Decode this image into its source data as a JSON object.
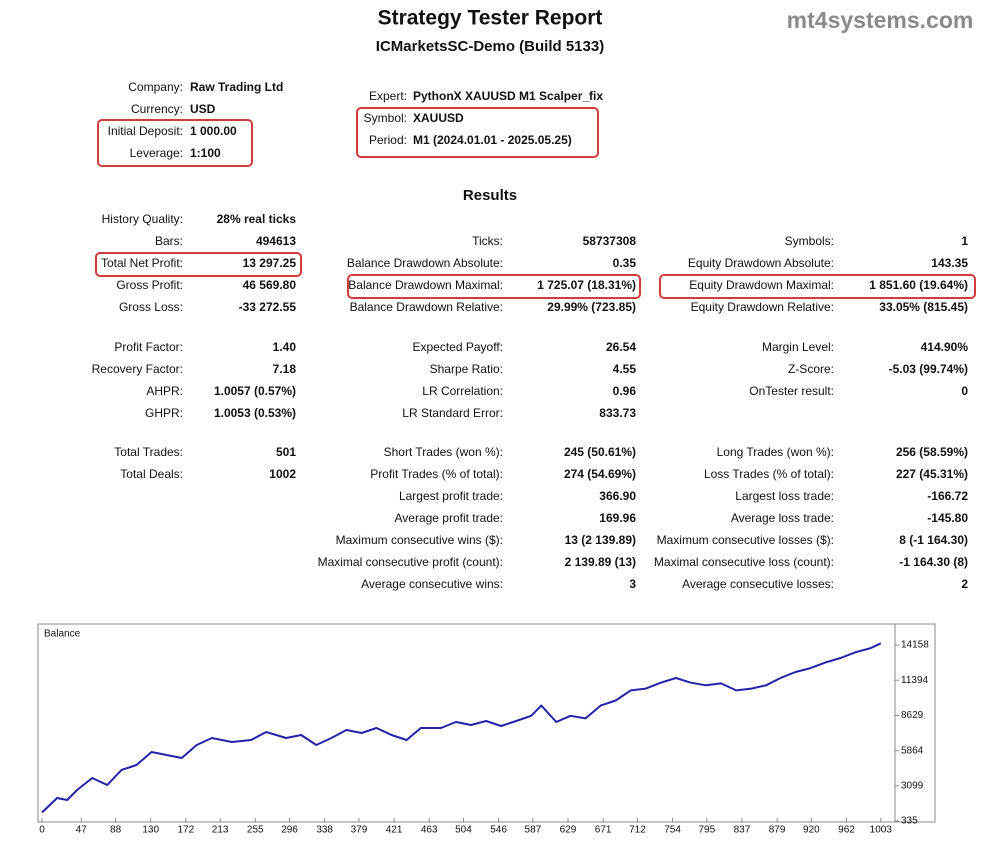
{
  "header": {
    "title": "Strategy Tester Report",
    "subtitle": "ICMarketsSC-Demo (Build 5133)",
    "watermark": "mt4systems.com"
  },
  "settings": {
    "left": [
      {
        "label": "Company:",
        "value": "Raw Trading Ltd"
      },
      {
        "label": "Currency:",
        "value": "USD"
      },
      {
        "label": "Initial Deposit:",
        "value": "1 000.00"
      },
      {
        "label": "Leverage:",
        "value": "1:100"
      }
    ],
    "right": [
      {
        "label": "Expert:",
        "value": "PythonX XAUUSD M1 Scalper_fix"
      },
      {
        "label": "Symbol:",
        "value": "XAUUSD"
      },
      {
        "label": "Period:",
        "value": "M1 (2024.01.01 - 2025.05.25)"
      }
    ]
  },
  "results": {
    "title": "Results",
    "blocks": [
      {
        "rows": [
          [
            {
              "label": "History Quality:",
              "value": "28% real ticks"
            },
            null,
            null
          ],
          [
            {
              "label": "Bars:",
              "value": "494613"
            },
            {
              "label": "Ticks:",
              "value": "58737308"
            },
            {
              "label": "Symbols:",
              "value": "1"
            }
          ],
          [
            {
              "label": "Total Net Profit:",
              "value": "13 297.25"
            },
            {
              "label": "Balance Drawdown Absolute:",
              "value": "0.35"
            },
            {
              "label": "Equity Drawdown Absolute:",
              "value": "143.35"
            }
          ],
          [
            {
              "label": "Gross Profit:",
              "value": "46 569.80"
            },
            {
              "label": "Balance Drawdown Maximal:",
              "value": "1 725.07 (18.31%)"
            },
            {
              "label": "Equity Drawdown Maximal:",
              "value": "1 851.60 (19.64%)"
            }
          ],
          [
            {
              "label": "Gross Loss:",
              "value": "-33 272.55"
            },
            {
              "label": "Balance Drawdown Relative:",
              "value": "29.99% (723.85)"
            },
            {
              "label": "Equity Drawdown Relative:",
              "value": "33.05% (815.45)"
            }
          ]
        ]
      },
      {
        "rows": [
          [
            {
              "label": "Profit Factor:",
              "value": "1.40"
            },
            {
              "label": "Expected Payoff:",
              "value": "26.54"
            },
            {
              "label": "Margin Level:",
              "value": "414.90%"
            }
          ],
          [
            {
              "label": "Recovery Factor:",
              "value": "7.18"
            },
            {
              "label": "Sharpe Ratio:",
              "value": "4.55"
            },
            {
              "label": "Z-Score:",
              "value": "-5.03 (99.74%)"
            }
          ],
          [
            {
              "label": "AHPR:",
              "value": "1.0057 (0.57%)"
            },
            {
              "label": "LR Correlation:",
              "value": "0.96"
            },
            {
              "label": "OnTester result:",
              "value": "0"
            }
          ],
          [
            {
              "label": "GHPR:",
              "value": "1.0053 (0.53%)"
            },
            {
              "label": "LR Standard Error:",
              "value": "833.73"
            },
            null
          ]
        ]
      },
      {
        "rows": [
          [
            {
              "label": "Total Trades:",
              "value": "501"
            },
            {
              "label": "Short Trades (won %):",
              "value": "245 (50.61%)"
            },
            {
              "label": "Long Trades (won %):",
              "value": "256 (58.59%)"
            }
          ],
          [
            {
              "label": "Total Deals:",
              "value": "1002"
            },
            {
              "label": "Profit Trades (% of total):",
              "value": "274 (54.69%)"
            },
            {
              "label": "Loss Trades (% of total):",
              "value": "227 (45.31%)"
            }
          ],
          [
            null,
            {
              "label": "Largest profit trade:",
              "value": "366.90"
            },
            {
              "label": "Largest loss trade:",
              "value": "-166.72"
            }
          ],
          [
            null,
            {
              "label": "Average profit trade:",
              "value": "169.96"
            },
            {
              "label": "Average loss trade:",
              "value": "-145.80"
            }
          ],
          [
            null,
            {
              "label": "Maximum consecutive wins ($):",
              "value": "13 (2 139.89)"
            },
            {
              "label": "Maximum consecutive losses ($):",
              "value": "8 (-1 164.30)"
            }
          ],
          [
            null,
            {
              "label": "Maximal consecutive profit (count):",
              "value": "2 139.89 (13)"
            },
            {
              "label": "Maximal consecutive loss (count):",
              "value": "-1 164.30 (8)"
            }
          ],
          [
            null,
            {
              "label": "Average consecutive wins:",
              "value": "3"
            },
            {
              "label": "Average consecutive losses:",
              "value": "2"
            }
          ]
        ]
      }
    ]
  },
  "chart_data": {
    "type": "line",
    "title": "Balance",
    "x": [
      0,
      18,
      30,
      42,
      60,
      78,
      95,
      113,
      131,
      149,
      167,
      185,
      203,
      227,
      250,
      268,
      292,
      310,
      328,
      346,
      364,
      382,
      400,
      418,
      436,
      453,
      477,
      495,
      513,
      531,
      549,
      567,
      585,
      597,
      615,
      632,
      650,
      668,
      686,
      704,
      722,
      740,
      758,
      776,
      794,
      812,
      830,
      848,
      866,
      883,
      901,
      919,
      937,
      955,
      973,
      991,
      1003
    ],
    "series": [
      {
        "name": "Balance",
        "color": "#2323a8",
        "values": [
          1000,
          2142,
          1985,
          2770,
          3713,
          3163,
          4341,
          4734,
          5756,
          5520,
          5284,
          6305,
          6855,
          6540,
          6700,
          7327,
          6855,
          7090,
          6305,
          6855,
          7484,
          7248,
          7641,
          7090,
          6700,
          7641,
          7641,
          8112,
          7877,
          8190,
          7800,
          8190,
          8600,
          9400,
          8112,
          8600,
          8400,
          9400,
          9800,
          10600,
          10740,
          11200,
          11570,
          11200,
          11000,
          11150,
          10600,
          10740,
          11000,
          11570,
          12040,
          12350,
          12800,
          13140,
          13600,
          13920,
          14297
        ]
      }
    ],
    "xlim": [
      0,
      1020
    ],
    "ylim": [
      335,
      15500
    ],
    "xticks": [
      0,
      47,
      88,
      130,
      172,
      213,
      255,
      296,
      338,
      379,
      421,
      463,
      504,
      546,
      587,
      629,
      671,
      712,
      754,
      795,
      837,
      879,
      920,
      962,
      1003
    ],
    "yticks": [
      335,
      3099,
      5864,
      8629,
      11394,
      14158
    ]
  }
}
